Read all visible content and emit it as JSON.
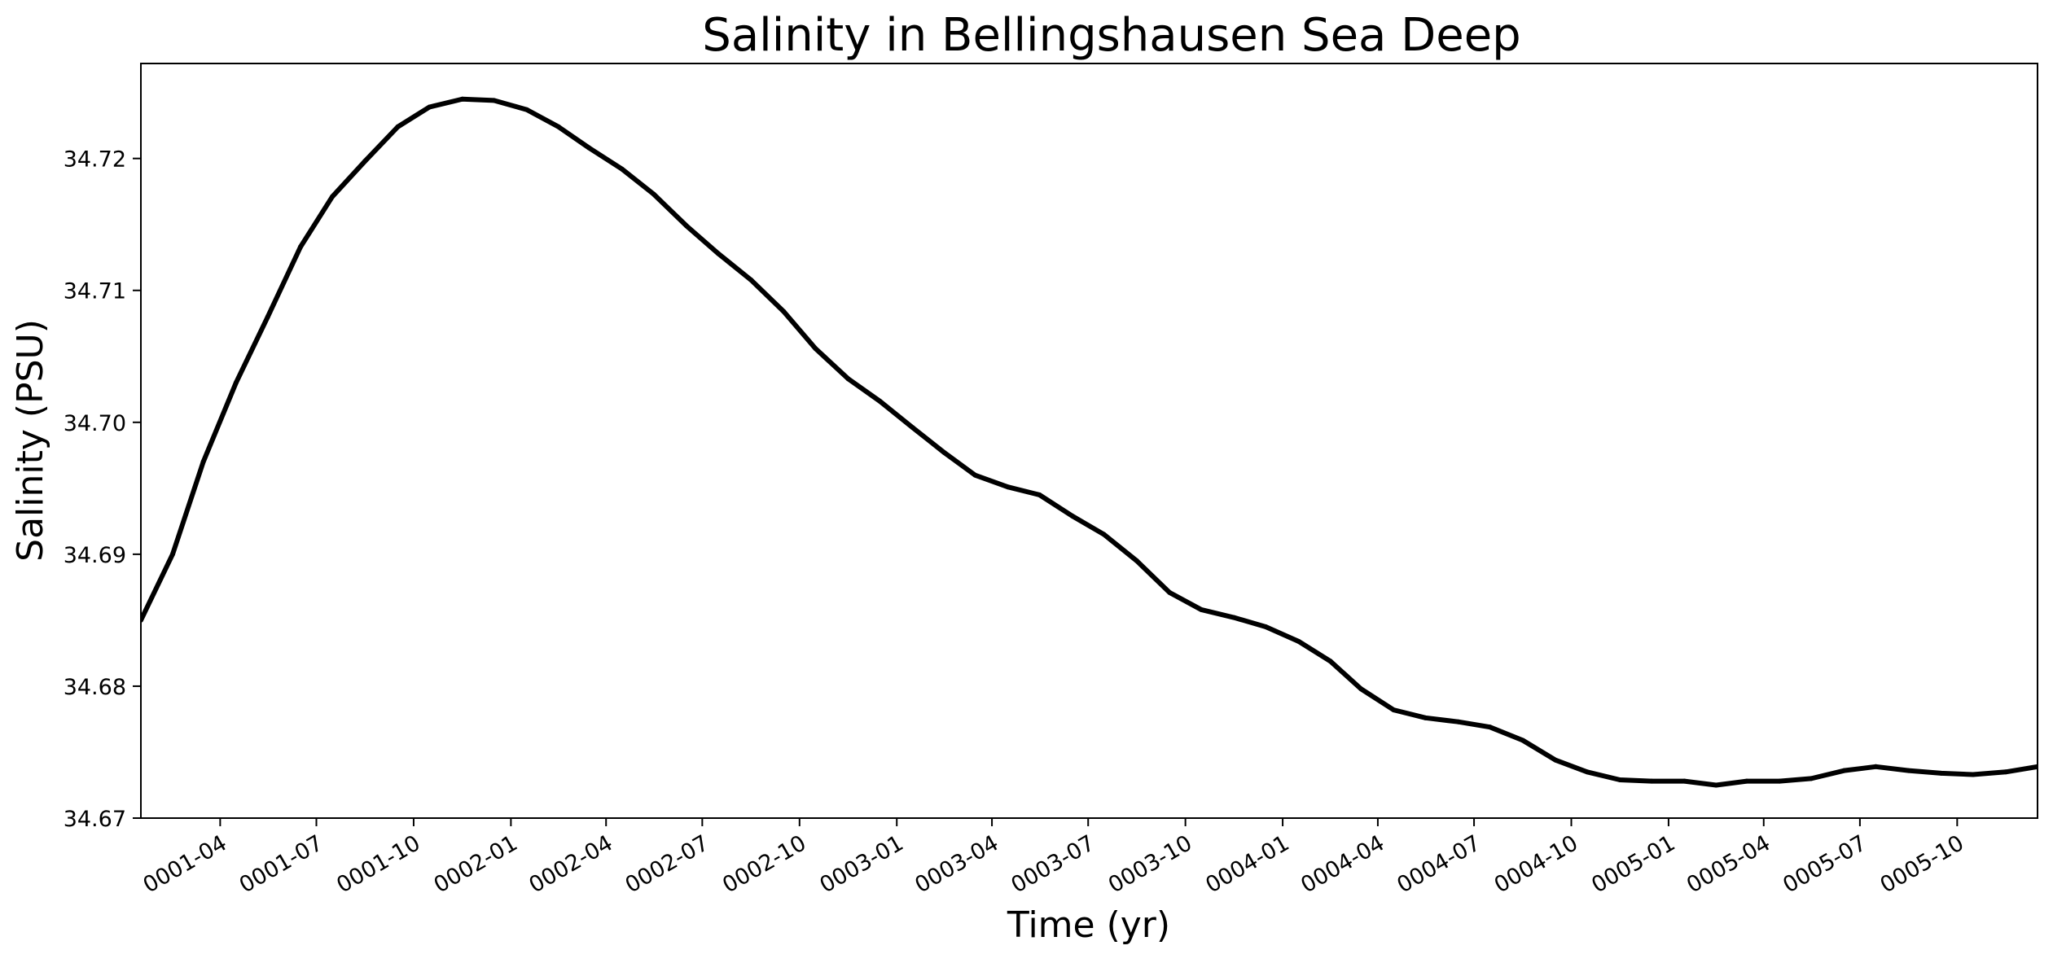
{
  "chart_data": {
    "type": "line",
    "title": "Salinity in Bellingshausen Sea Deep",
    "xlabel": "Time (yr)",
    "ylabel": "Salinity (PSU)",
    "y_ticks": [
      "34.67",
      "34.68",
      "34.69",
      "34.70",
      "34.71",
      "34.72"
    ],
    "y_tick_values": [
      34.67,
      34.68,
      34.69,
      34.7,
      34.71,
      34.72
    ],
    "x_ticks": [
      "0001-04",
      "0001-07",
      "0001-10",
      "0002-01",
      "0002-04",
      "0002-07",
      "0002-10",
      "0003-01",
      "0003-04",
      "0003-07",
      "0003-10",
      "0004-01",
      "0004-04",
      "0004-07",
      "0004-10",
      "0005-01",
      "0005-04",
      "0005-07",
      "0005-10"
    ],
    "ylim": [
      34.67,
      34.7272
    ],
    "xlim": [
      "0001-01-16",
      "0005-12-16"
    ],
    "grid": false,
    "legend": "none",
    "line_color": "#000000",
    "series": [
      {
        "x": [
          "0001-01-16",
          "0001-02-15",
          "0001-03-16",
          "0001-04-16",
          "0001-05-16",
          "0001-06-16",
          "0001-07-16",
          "0001-08-16",
          "0001-09-16",
          "0001-10-16",
          "0001-11-16",
          "0001-12-16",
          "0002-01-16",
          "0002-02-15",
          "0002-03-16",
          "0002-04-16",
          "0002-05-16",
          "0002-06-16",
          "0002-07-16",
          "0002-08-16",
          "0002-09-16",
          "0002-10-16",
          "0002-11-16",
          "0002-12-16",
          "0003-01-16",
          "0003-02-15",
          "0003-03-16",
          "0003-04-16",
          "0003-05-16",
          "0003-06-16",
          "0003-07-16",
          "0003-08-16",
          "0003-09-16",
          "0003-10-16",
          "0003-11-16",
          "0003-12-16",
          "0004-01-16",
          "0004-02-15",
          "0004-03-16",
          "0004-04-16",
          "0004-05-16",
          "0004-06-16",
          "0004-07-16",
          "0004-08-16",
          "0004-09-16",
          "0004-10-16",
          "0004-11-16",
          "0004-12-16",
          "0005-01-16",
          "0005-02-15",
          "0005-03-16",
          "0005-04-16",
          "0005-05-16",
          "0005-06-16",
          "0005-07-16",
          "0005-08-16",
          "0005-09-16",
          "0005-10-16",
          "0005-11-16",
          "0005-12-16"
        ],
        "values": [
          34.685,
          34.69,
          34.697,
          34.703,
          34.708,
          34.7133,
          34.7171,
          34.7198,
          34.7224,
          34.7239,
          34.7245,
          34.7244,
          34.7237,
          34.7224,
          34.7208,
          34.7192,
          34.7173,
          34.7149,
          34.7128,
          34.7108,
          34.7084,
          34.7056,
          34.7033,
          34.7016,
          34.6996,
          34.6977,
          34.696,
          34.6951,
          34.6945,
          34.6929,
          34.6915,
          34.6895,
          34.6871,
          34.6858,
          34.6852,
          34.6845,
          34.6834,
          34.6819,
          34.6798,
          34.6782,
          34.6776,
          34.6773,
          34.6769,
          34.6759,
          34.6744,
          34.6735,
          34.6729,
          34.6728,
          34.6728,
          34.6725,
          34.6728,
          34.6728,
          34.673,
          34.6736,
          34.6739,
          34.6736,
          34.6734,
          34.6733,
          34.6735,
          34.6739
        ]
      }
    ]
  }
}
